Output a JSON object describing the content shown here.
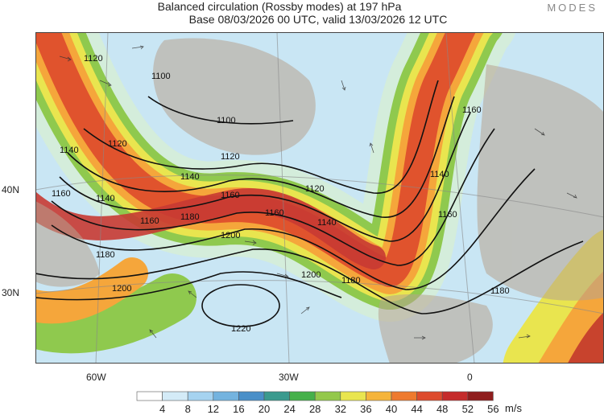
{
  "header": {
    "title_line1": "Balanced circulation (Rossby modes) at 197 hPa",
    "title_line2": "Base 08/03/2026 00 UTC, valid 13/03/2026 12 UTC",
    "brand": "MODES"
  },
  "axes": {
    "lat_labels": [
      "40N",
      "30N"
    ],
    "lon_labels": [
      "60W",
      "30W",
      "0"
    ]
  },
  "contours": {
    "labels": [
      "1100",
      "1100",
      "1120",
      "1120",
      "1120",
      "1120",
      "1140",
      "1140",
      "1140",
      "1140",
      "1140",
      "1160",
      "1160",
      "1160",
      "1160",
      "1160",
      "1160",
      "1180",
      "1180",
      "1180",
      "1180",
      "1200",
      "1200",
      "1200",
      "1220"
    ]
  },
  "colorbar": {
    "ticks": [
      "4",
      "8",
      "12",
      "16",
      "20",
      "24",
      "28",
      "32",
      "36",
      "40",
      "44",
      "48",
      "52",
      "56"
    ],
    "colors": [
      "#ffffff",
      "#d4ebf7",
      "#a6d3f0",
      "#74b3df",
      "#4a8fc8",
      "#3b9a8e",
      "#45b04a",
      "#93c84b",
      "#e9e54f",
      "#f5b43b",
      "#ee7a2e",
      "#dd4b2d",
      "#c52b2b",
      "#8f1d1d"
    ],
    "unit": "m/s"
  }
}
